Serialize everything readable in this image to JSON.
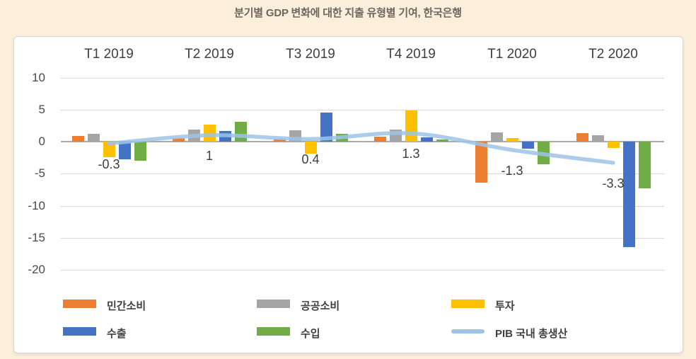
{
  "page": {
    "title": "분기별 GDP 변화에 대한 지출 유형별 기여, 한국은행",
    "background_color": "#FBEEDB",
    "card_color": "#FFFFFF"
  },
  "chart_data": {
    "type": "bar",
    "title": "분기별 GDP 변화에 대한 지출 유형별 기여, 한국은행",
    "categories": [
      "T1 2019",
      "T2 2019",
      "T3 2019",
      "T4 2019",
      "T1 2020",
      "T2 2020"
    ],
    "series": [
      {
        "key": "private-consumption",
        "name": "민간소비",
        "color": "#ED7D31",
        "values": [
          0.9,
          0.6,
          0.4,
          0.8,
          -6.4,
          1.3
        ]
      },
      {
        "key": "public-consumption",
        "name": "공공소비",
        "color": "#A5A5A5",
        "values": [
          1.2,
          1.9,
          1.8,
          1.9,
          1.4,
          1.0
        ]
      },
      {
        "key": "investment",
        "name": "투자",
        "color": "#FFC000",
        "values": [
          -2.4,
          2.6,
          -1.9,
          4.9,
          0.6,
          -1.0
        ]
      },
      {
        "key": "exports",
        "name": "수출",
        "color": "#4472C4",
        "values": [
          -2.8,
          1.7,
          4.5,
          0.7,
          -1.1,
          -16.5
        ]
      },
      {
        "key": "imports",
        "name": "수입",
        "color": "#70AD47",
        "values": [
          -3.0,
          3.1,
          1.2,
          0.3,
          -3.5,
          -7.3
        ]
      }
    ],
    "line_series": {
      "key": "gdp",
      "name": "PIB 국내 총생산",
      "color": "#9DC3E6",
      "values": [
        -0.3,
        1,
        0.4,
        1.3,
        -1.3,
        -3.3
      ],
      "labels": [
        "-0.3",
        "1",
        "0.4",
        "1.3",
        "-1.3",
        "-3.3"
      ]
    },
    "y_axis": {
      "ticks": [
        10,
        5,
        0,
        -5,
        -10,
        -15,
        -20
      ],
      "tick_labels": [
        "10",
        "5",
        "0",
        "-5",
        "-10",
        "-15",
        "-20"
      ]
    },
    "ylim": [
      -20,
      10
    ],
    "grid": true,
    "legend_position": "bottom"
  }
}
